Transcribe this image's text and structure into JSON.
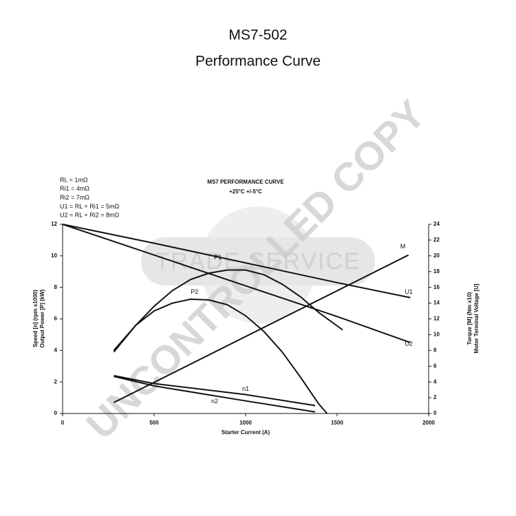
{
  "header": {
    "title": "MS7-502",
    "subtitle": "Performance Curve"
  },
  "watermarks": [
    "TRADE SERVICE",
    "UNCONTROLLED COPY"
  ],
  "chart_data": {
    "type": "line",
    "title": "MS7 PERFORMANCE CURVE",
    "subtitle": "+25°C +/-5°C",
    "notes": [
      "RL = 1mΩ",
      "Ri1 = 4mΩ",
      "Ri2 = 7mΩ",
      "U1 = RL + Ri1 = 5mΩ",
      "U2 = RL + Ri2 = 8mΩ"
    ],
    "xlabel": "Starter Current (A)",
    "ylabel": [
      "Speed [n] (rpm x1000)",
      "Output Power [P] (kW)"
    ],
    "y2label": [
      "Torque [M] (Nm x10)",
      "Motor Terminal Voltage [U]"
    ],
    "xlim": [
      0,
      2000
    ],
    "xticks": [
      0,
      500,
      1000,
      1500,
      2000
    ],
    "ylim": [
      0,
      12
    ],
    "yticks": [
      0,
      2,
      4,
      6,
      8,
      10,
      12
    ],
    "y2lim": [
      0,
      24
    ],
    "y2ticks": [
      0,
      2,
      4,
      6,
      8,
      10,
      12,
      14,
      16,
      18,
      20,
      22,
      24
    ],
    "series": [
      {
        "name": "M",
        "color": "#111111",
        "axis": "y2",
        "x": [
          280,
          1890
        ],
        "values": [
          1.4,
          20.1
        ]
      },
      {
        "name": "U1",
        "color": "#111111",
        "axis": "y2",
        "x": [
          0,
          500,
          1000,
          1500,
          1900
        ],
        "values": [
          24,
          21.6,
          19.1,
          16.6,
          14.7
        ]
      },
      {
        "name": "U2",
        "color": "#111111",
        "axis": "y2",
        "x": [
          0,
          500,
          1000,
          1500,
          1900
        ],
        "values": [
          24,
          20.1,
          16.2,
          12.3,
          9.0
        ]
      },
      {
        "name": "P1",
        "color": "#111111",
        "x": [
          280,
          400,
          500,
          600,
          700,
          800,
          900,
          1000,
          1100,
          1200,
          1300,
          1400,
          1530
        ],
        "values": [
          3.9,
          5.6,
          6.8,
          7.8,
          8.5,
          8.9,
          9.1,
          9.1,
          8.8,
          8.2,
          7.4,
          6.4,
          5.3
        ]
      },
      {
        "name": "P2",
        "color": "#111111",
        "x": [
          280,
          400,
          500,
          600,
          700,
          800,
          900,
          1000,
          1100,
          1200,
          1300,
          1400,
          1445
        ],
        "values": [
          4.0,
          5.6,
          6.5,
          7.0,
          7.25,
          7.2,
          6.9,
          6.2,
          5.2,
          3.9,
          2.3,
          0.6,
          0
        ]
      },
      {
        "name": "n1",
        "color": "#111111",
        "x": [
          280,
          500,
          1000,
          1380
        ],
        "values": [
          2.4,
          1.9,
          1.2,
          0.5
        ]
      },
      {
        "name": "n2",
        "color": "#111111",
        "x": [
          280,
          500,
          1000,
          1380
        ],
        "values": [
          2.35,
          1.75,
          0.8,
          0.1
        ]
      }
    ]
  }
}
